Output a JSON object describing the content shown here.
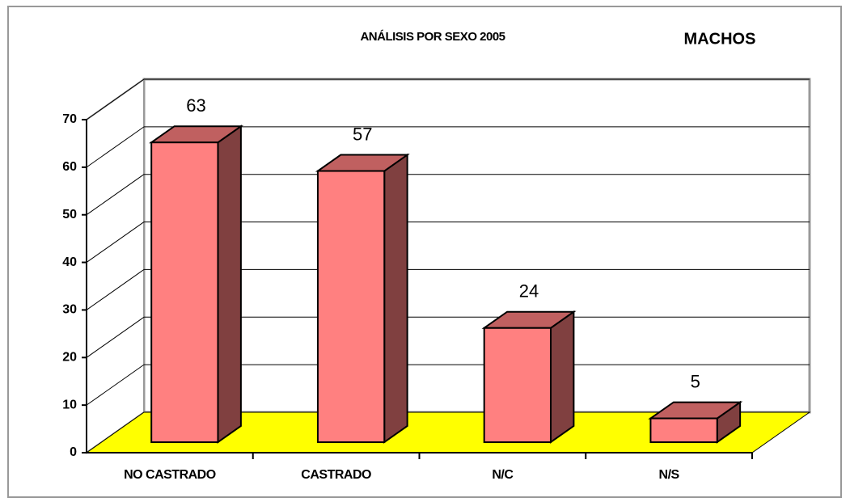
{
  "chart_data": {
    "type": "bar3d",
    "title": "ANÁLISIS POR SEXO 2005",
    "subtitle": "MACHOS",
    "categories": [
      "NO CASTRADO",
      "CASTRADO",
      "N/C",
      "N/S"
    ],
    "values": [
      63,
      57,
      24,
      5
    ],
    "color": "#ff8080",
    "side_color": "#804040",
    "top_color": "#c06060",
    "floor_color": "#ffff00",
    "ylim": [
      0,
      70
    ],
    "yticks": [
      0,
      10,
      20,
      30,
      40,
      50,
      60,
      70
    ],
    "grid": true
  }
}
